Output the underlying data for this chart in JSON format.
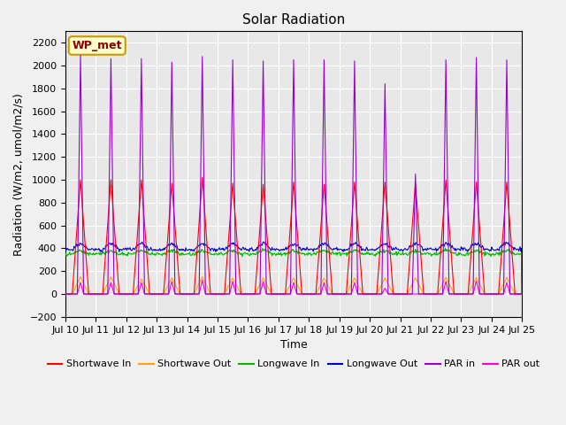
{
  "title": "Solar Radiation",
  "xlabel": "Time",
  "ylabel": "Radiation (W/m2, umol/m2/s)",
  "ylim": [
    -200,
    2300
  ],
  "yticks": [
    -200,
    0,
    200,
    400,
    600,
    800,
    1000,
    1200,
    1400,
    1600,
    1800,
    2000,
    2200
  ],
  "shortwave_in_color": "#ff0000",
  "shortwave_out_color": "#ffa500",
  "longwave_in_color": "#00bb00",
  "longwave_out_color": "#0000dd",
  "par_in_color": "#9900cc",
  "par_out_color": "#ff00cc",
  "background_color": "#e8e8e8",
  "annotation_text": "WP_met",
  "annotation_bg": "#ffffcc",
  "annotation_border": "#cc9900",
  "title_fontsize": 11,
  "axis_label_fontsize": 9,
  "tick_fontsize": 8,
  "legend_fontsize": 8,
  "line_width": 0.8,
  "grid_color": "#ffffff",
  "par_in_peaks": [
    2100,
    2090,
    2060,
    2060,
    2030,
    2080,
    2050,
    2040,
    2050,
    2050,
    2040,
    1840,
    1050,
    2050,
    2070,
    2050
  ],
  "par_out_peaks": [
    105,
    100,
    100,
    100,
    110,
    120,
    110,
    110,
    100,
    100,
    100,
    50,
    0,
    110,
    115,
    100
  ],
  "sw_in_peaks": [
    1000,
    1000,
    1000,
    1000,
    970,
    1020,
    970,
    960,
    980,
    960,
    980,
    980,
    970,
    1000,
    980,
    980
  ],
  "sw_out_peaks": [
    150,
    150,
    150,
    130,
    140,
    150,
    140,
    140,
    140,
    140,
    140,
    140,
    140,
    145,
    145,
    145
  ],
  "lw_in_base": 350,
  "lw_out_base": 390,
  "lw_in_day_bump": 30,
  "lw_out_day_bump": 50,
  "x_tick_labels": [
    "Jul 10",
    "Jul 11",
    "Jul 12",
    "Jul 13",
    "Jul 14",
    "Jul 15",
    "Jul 16",
    "Jul 17",
    "Jul 18",
    "Jul 19",
    "Jul 20",
    "Jul 21",
    "Jul 22",
    "Jul 23",
    "Jul 24",
    "Jul 25"
  ]
}
